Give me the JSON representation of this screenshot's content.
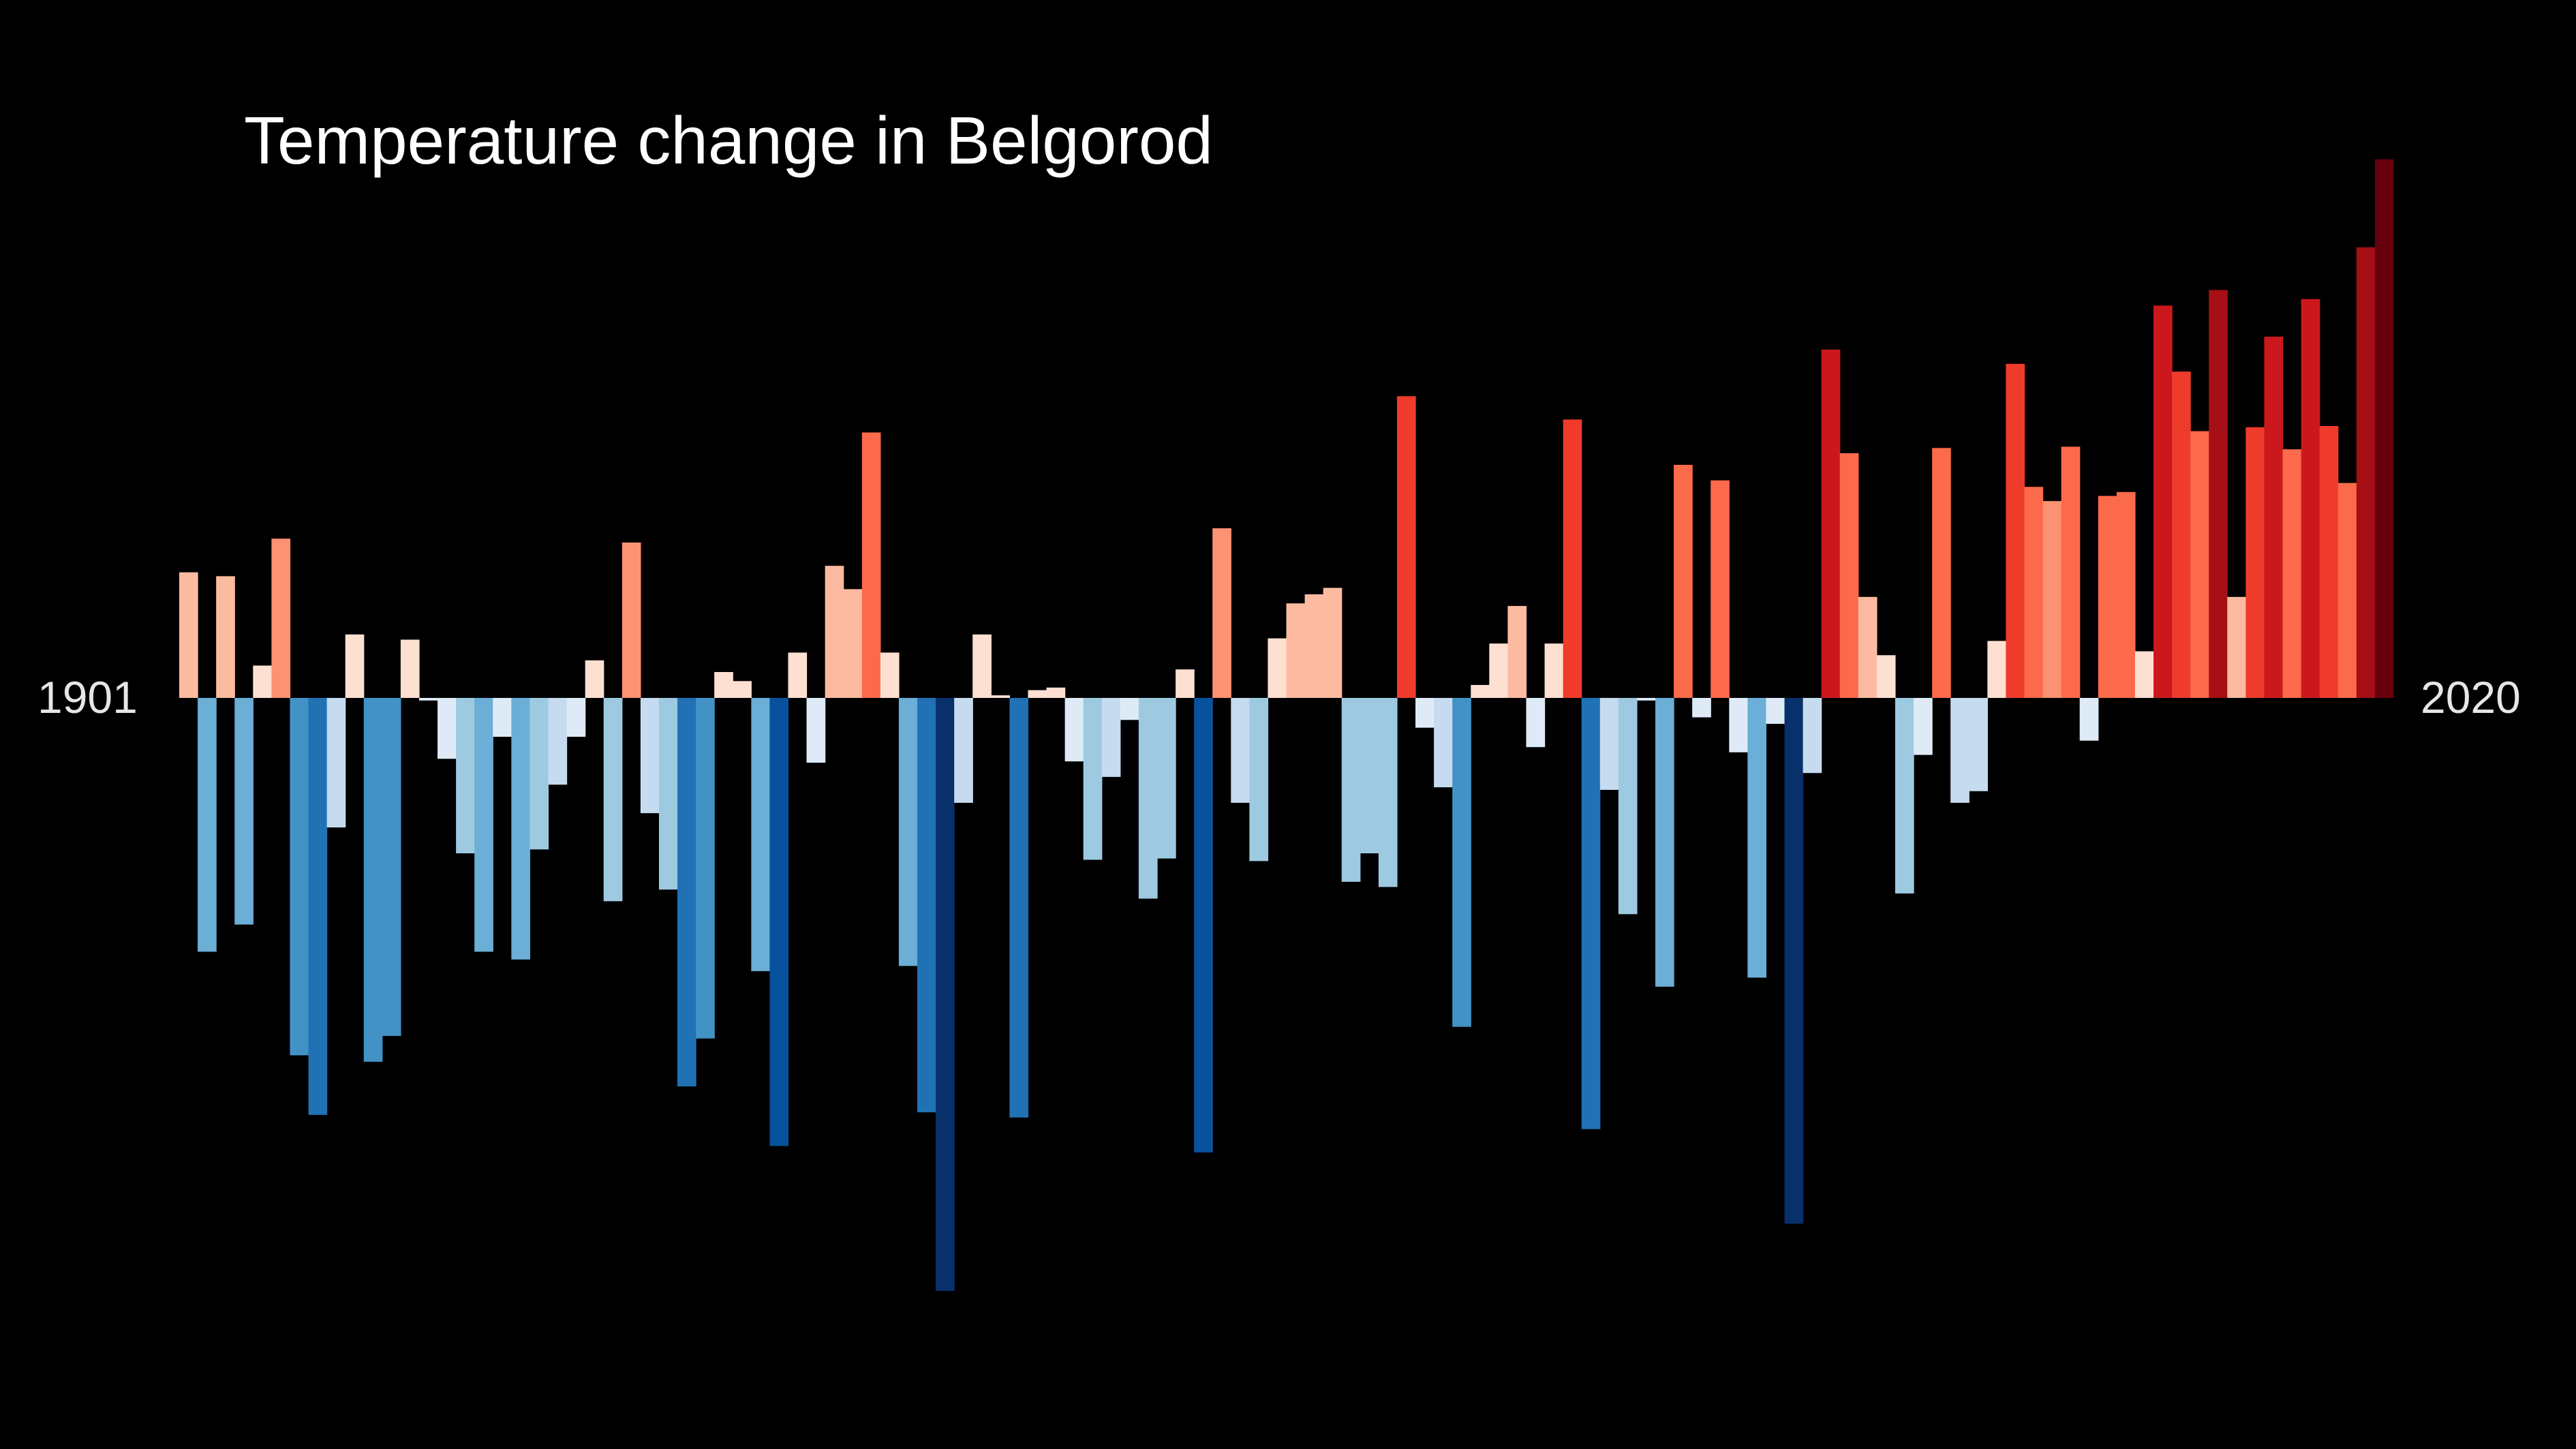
{
  "chart_data": {
    "type": "bar",
    "title": "Temperature change in Belgorod",
    "xlabel": "",
    "ylabel": "",
    "start_year_label": "1901",
    "end_year_label": "2020",
    "x": [
      1901,
      1902,
      1903,
      1904,
      1905,
      1906,
      1907,
      1908,
      1909,
      1910,
      1911,
      1912,
      1913,
      1914,
      1915,
      1916,
      1917,
      1918,
      1919,
      1920,
      1921,
      1922,
      1923,
      1924,
      1925,
      1926,
      1927,
      1928,
      1929,
      1930,
      1931,
      1932,
      1933,
      1934,
      1935,
      1936,
      1937,
      1938,
      1939,
      1940,
      1941,
      1942,
      1943,
      1944,
      1945,
      1946,
      1947,
      1948,
      1949,
      1950,
      1951,
      1952,
      1953,
      1954,
      1955,
      1956,
      1957,
      1958,
      1959,
      1960,
      1961,
      1962,
      1963,
      1964,
      1965,
      1966,
      1967,
      1968,
      1969,
      1970,
      1971,
      1972,
      1973,
      1974,
      1975,
      1976,
      1977,
      1978,
      1979,
      1980,
      1981,
      1982,
      1983,
      1984,
      1985,
      1986,
      1987,
      1988,
      1989,
      1990,
      1991,
      1992,
      1993,
      1994,
      1995,
      1996,
      1997,
      1998,
      1999,
      2000,
      2001,
      2002,
      2003,
      2004,
      2005,
      2006,
      2007,
      2008,
      2009,
      2010,
      2011,
      2012,
      2013,
      2014,
      2015,
      2016,
      2017,
      2018,
      2019,
      2020
    ],
    "values": [
      0.97,
      -1.96,
      0.94,
      -1.75,
      0.25,
      1.23,
      -2.76,
      -3.22,
      -1.0,
      0.49,
      -2.81,
      -2.61,
      0.45,
      -0.02,
      -0.47,
      -1.2,
      -1.96,
      -0.3,
      -2.02,
      -1.17,
      -0.67,
      -0.3,
      0.29,
      -1.57,
      1.2,
      -0.89,
      -1.48,
      -3.0,
      -2.63,
      0.2,
      0.13,
      -2.11,
      -3.46,
      0.35,
      -0.5,
      1.02,
      0.84,
      2.05,
      0.35,
      -2.07,
      -3.2,
      -4.58,
      -0.81,
      0.49,
      0.02,
      -3.24,
      0.06,
      0.08,
      -0.49,
      -1.25,
      -0.61,
      -0.17,
      -1.55,
      -1.24,
      0.22,
      -3.51,
      1.31,
      -0.81,
      -1.26,
      0.46,
      0.73,
      0.8,
      0.85,
      -1.42,
      -1.2,
      -1.46,
      2.33,
      -0.23,
      -0.69,
      -2.54,
      0.1,
      0.42,
      0.71,
      -0.38,
      0.42,
      2.15,
      -3.33,
      -0.71,
      -1.67,
      -0.02,
      -2.23,
      1.8,
      -0.15,
      1.68,
      -0.42,
      -2.16,
      -0.2,
      -4.06,
      -0.58,
      2.69,
      1.89,
      0.78,
      0.33,
      -1.51,
      -0.44,
      1.93,
      -0.81,
      -0.72,
      0.44,
      2.58,
      1.63,
      1.52,
      1.94,
      -0.33,
      1.56,
      1.59,
      0.36,
      3.03,
      2.52,
      2.06,
      3.15,
      0.78,
      2.09,
      2.79,
      1.92,
      3.08,
      2.1,
      1.66,
      3.48,
      4.16
    ],
    "ylim": [
      -4.6,
      4.16
    ],
    "grid": false,
    "legend": "none",
    "colorscale": [
      "#08306b",
      "#08519c",
      "#2171b5",
      "#4292c6",
      "#6baed6",
      "#9ecae1",
      "#c6dbef",
      "#deebf7",
      "#fee0d2",
      "#fcbba1",
      "#fc9272",
      "#fb6a4a",
      "#ef3b2c",
      "#cb181d",
      "#a50f15",
      "#67000d"
    ],
    "colors": {
      "background": "#000000",
      "text": "#ffffff",
      "year_label": "#e6e6e6"
    }
  }
}
